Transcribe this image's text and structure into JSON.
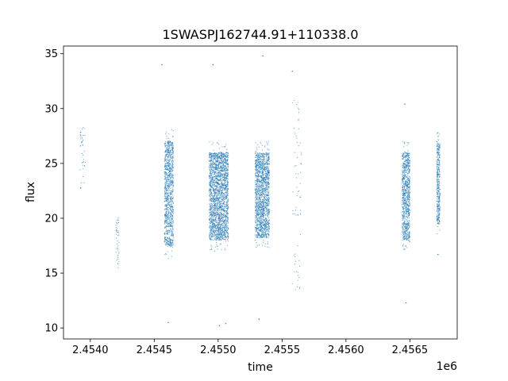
{
  "chart_data": {
    "type": "scatter",
    "title": "1SWASPJ162744.91+110338.0",
    "xlabel": "time",
    "ylabel": "flux",
    "x_offset_label": "1e6",
    "xlim": [
      2453790,
      2456870
    ],
    "ylim": [
      9,
      35.7
    ],
    "x_ticks": [
      2454000,
      2454500,
      2455000,
      2455500,
      2456000,
      2456500
    ],
    "x_tick_labels": [
      "2.4540",
      "2.4545",
      "2.4550",
      "2.4555",
      "2.4560",
      "2.4565"
    ],
    "y_ticks": [
      10,
      15,
      20,
      25,
      30,
      35
    ],
    "y_tick_labels": [
      "10",
      "15",
      "20",
      "25",
      "30",
      "35"
    ],
    "grid": false,
    "marker_color": "#1f77b4",
    "clusters": [
      {
        "x_start": 2453920,
        "x_end": 2453960,
        "y_low": 22.5,
        "y_high": 28.5,
        "density": "sparse"
      },
      {
        "x_start": 2454200,
        "x_end": 2454225,
        "y_low": 15.0,
        "y_high": 20.2,
        "density": "sparse"
      },
      {
        "x_start": 2454580,
        "x_end": 2454650,
        "y_low": 17.5,
        "y_high": 27.0,
        "density": "dense"
      },
      {
        "x_start": 2454930,
        "x_end": 2455080,
        "y_low": 18.0,
        "y_high": 26.0,
        "density": "dense"
      },
      {
        "x_start": 2455290,
        "x_end": 2455400,
        "y_low": 18.2,
        "y_high": 26.0,
        "density": "dense"
      },
      {
        "x_start": 2455580,
        "x_end": 2455650,
        "y_low": 13.0,
        "y_high": 31.0,
        "density": "sparse"
      },
      {
        "x_start": 2456440,
        "x_end": 2456500,
        "y_low": 18.0,
        "y_high": 26.0,
        "density": "dense"
      },
      {
        "x_start": 2456710,
        "x_end": 2456735,
        "y_low": 19.5,
        "y_high": 27.0,
        "density": "dense"
      }
    ],
    "outliers": [
      {
        "x": 2454560,
        "y": 34.0
      },
      {
        "x": 2454610,
        "y": 10.5
      },
      {
        "x": 2454960,
        "y": 34.0
      },
      {
        "x": 2455010,
        "y": 10.2
      },
      {
        "x": 2455060,
        "y": 10.4
      },
      {
        "x": 2455350,
        "y": 34.8
      },
      {
        "x": 2455320,
        "y": 10.8
      },
      {
        "x": 2455580,
        "y": 33.4
      },
      {
        "x": 2456460,
        "y": 30.4
      },
      {
        "x": 2456470,
        "y": 12.3
      },
      {
        "x": 2456720,
        "y": 16.7
      }
    ]
  }
}
